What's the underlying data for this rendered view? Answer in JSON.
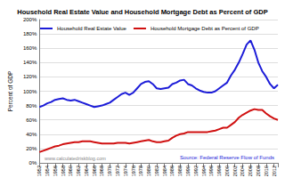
{
  "chart_data": {
    "type": "line",
    "title": "Household Real Estate Value and Household Mortgage Debt as Percent of GDP",
    "y_label": "Percent of GDP",
    "annotations": [
      "www.calculatedriskblog.com",
      "Source: Federal Reserve Flow of Funds"
    ],
    "x": [
      1952,
      1953,
      1954,
      1955,
      1956,
      1957,
      1958,
      1959,
      1960,
      1961,
      1962,
      1963,
      1964,
      1965,
      1966,
      1967,
      1968,
      1969,
      1970,
      1971,
      1972,
      1973,
      1974,
      1975,
      1976,
      1977,
      1978,
      1979,
      1980,
      1981,
      1982,
      1983,
      1984,
      1985,
      1986,
      1987,
      1988,
      1989,
      1990,
      1991,
      1992,
      1993,
      1994,
      1995,
      1996,
      1997,
      1998,
      1999,
      2000,
      2001,
      2002,
      2003,
      2004,
      2005,
      2006,
      2007,
      2008,
      2009,
      2010,
      2011,
      2012,
      2013
    ],
    "series": [
      {
        "name": "Household Real Estate Value",
        "color": "#1c1cd8",
        "values": [
          78,
          80,
          83,
          85,
          88,
          89,
          90,
          88,
          87,
          88,
          86,
          84,
          82,
          80,
          78,
          79,
          80,
          82,
          84,
          88,
          92,
          96,
          98,
          95,
          98,
          104,
          110,
          113,
          114,
          110,
          104,
          103,
          104,
          105,
          110,
          112,
          115,
          116,
          110,
          108,
          104,
          101,
          99,
          98,
          98,
          100,
          104,
          108,
          112,
          122,
          130,
          140,
          152,
          165,
          171,
          158,
          140,
          128,
          120,
          110,
          104,
          109
        ]
      },
      {
        "name": "Household Mortgage Debt as Percent of GDP",
        "color": "#d01010",
        "values": [
          15,
          17,
          19,
          21,
          23,
          24,
          26,
          27,
          28,
          29,
          29,
          30,
          30,
          30,
          29,
          28,
          27,
          27,
          27,
          27,
          28,
          28,
          28,
          27,
          28,
          29,
          30,
          31,
          32,
          30,
          29,
          29,
          30,
          31,
          35,
          38,
          40,
          41,
          43,
          43,
          43,
          43,
          43,
          43,
          44,
          45,
          47,
          49,
          49,
          53,
          57,
          63,
          67,
          70,
          73,
          75,
          74,
          74,
          69,
          65,
          62,
          60
        ]
      }
    ],
    "xlim": [
      1952,
      2013
    ],
    "xticks": [
      1952,
      1954,
      1956,
      1958,
      1960,
      1962,
      1964,
      1966,
      1968,
      1970,
      1972,
      1974,
      1976,
      1978,
      1980,
      1982,
      1984,
      1986,
      1988,
      1990,
      1992,
      1994,
      1996,
      1998,
      2000,
      2002,
      2004,
      2006,
      2008,
      2010,
      2012
    ],
    "ylim": [
      0,
      200
    ],
    "yticks": [
      {
        "value": 0,
        "label": "0%"
      },
      {
        "value": 20,
        "label": "20%"
      },
      {
        "value": 40,
        "label": "40%"
      },
      {
        "value": 60,
        "label": "60%"
      },
      {
        "value": 80,
        "label": "80%"
      },
      {
        "value": 100,
        "label": "100%"
      },
      {
        "value": 120,
        "label": "120%"
      },
      {
        "value": 140,
        "label": "140%"
      },
      {
        "value": 160,
        "label": "160%"
      },
      {
        "value": 180,
        "label": "180%"
      },
      {
        "value": 200,
        "label": "200%"
      }
    ],
    "grid": true,
    "legend": "top-left"
  }
}
